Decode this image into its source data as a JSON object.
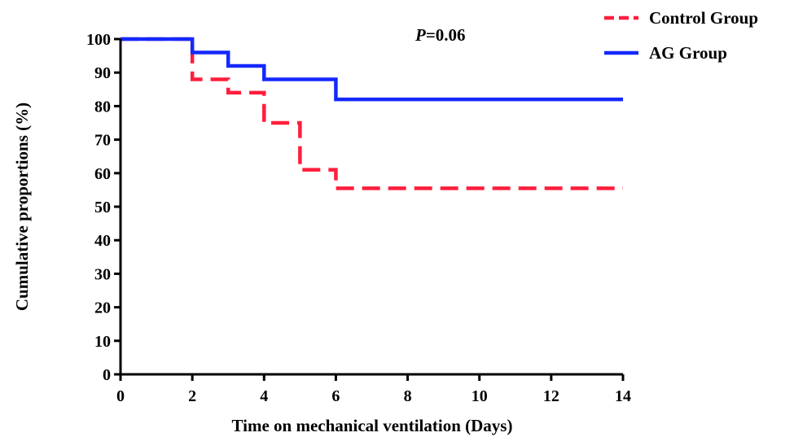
{
  "chart_data": {
    "type": "line",
    "xlabel": "Time on mechanical ventilation (Days)",
    "ylabel": "Cumulative proportions (%)",
    "xlim": [
      0,
      14
    ],
    "ylim": [
      0,
      100
    ],
    "x_ticks": [
      0,
      2,
      4,
      6,
      8,
      10,
      12,
      14
    ],
    "y_ticks": [
      0,
      10,
      20,
      30,
      40,
      50,
      60,
      70,
      80,
      90,
      100
    ],
    "grid": false,
    "legend_position": "top-right",
    "annotation": {
      "p_symbol": "P",
      "p_value": "=0.06"
    },
    "series": [
      {
        "name": "Control Group",
        "color": "#ff1e3c",
        "style": "dashed",
        "step": true,
        "x": [
          0,
          2,
          3,
          4,
          5,
          6,
          14
        ],
        "y": [
          100,
          88,
          84,
          75,
          61,
          55.5,
          55.5
        ]
      },
      {
        "name": "AG Group",
        "color": "#1428ff",
        "style": "solid",
        "step": true,
        "x": [
          0,
          2,
          3,
          4,
          6,
          14
        ],
        "y": [
          100,
          96,
          92,
          88,
          82,
          82
        ]
      }
    ]
  }
}
